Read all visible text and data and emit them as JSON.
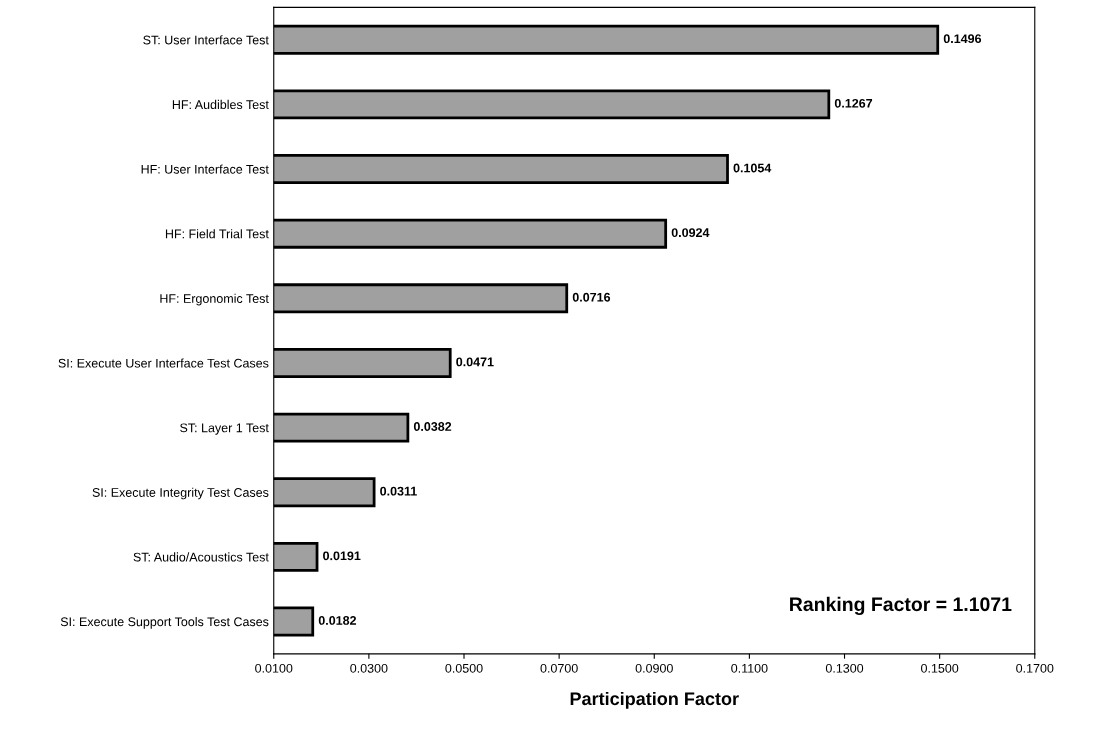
{
  "chart_data": {
    "type": "bar",
    "orientation": "horizontal",
    "xlabel": "Participation Factor",
    "categories": [
      "ST: User Interface Test",
      "HF: Audibles Test",
      "HF: User Interface Test",
      "HF: Field Trial Test",
      "HF: Ergonomic Test",
      "SI: Execute User Interface Test Cases",
      "ST: Layer 1 Test",
      "SI: Execute Integrity Test Cases",
      "ST: Audio/Acoustics Test",
      "SI: Execute Support Tools Test Cases"
    ],
    "values": [
      0.1496,
      0.1267,
      0.1054,
      0.0924,
      0.0716,
      0.0471,
      0.0382,
      0.0311,
      0.0191,
      0.0182
    ],
    "color": "#a0a0a0",
    "data_labels": true,
    "xlim": [
      0.01,
      0.17
    ],
    "xticks": [
      {
        "value": 0.01,
        "label": "0.0100"
      },
      {
        "value": 0.03,
        "label": "0.0300"
      },
      {
        "value": 0.05,
        "label": "0.0500"
      },
      {
        "value": 0.07,
        "label": "0.0700"
      },
      {
        "value": 0.09,
        "label": "0.0900"
      },
      {
        "value": 0.11,
        "label": "0.1100"
      },
      {
        "value": 0.13,
        "label": "0.1300"
      },
      {
        "value": 0.15,
        "label": "0.1500"
      },
      {
        "value": 0.17,
        "label": "0.1700"
      }
    ],
    "grid": false,
    "annotations": [
      "Ranking Factor = 1.1071"
    ]
  }
}
